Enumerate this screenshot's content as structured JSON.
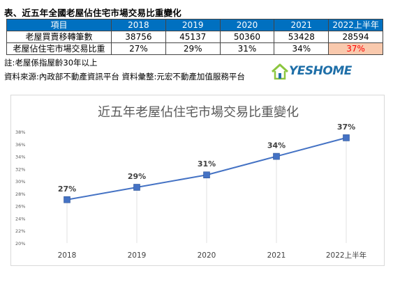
{
  "title": "表、近五年全國老屋佔住宅市場交易比重變化",
  "table": {
    "headers": [
      "項目",
      "2018",
      "2019",
      "2020",
      "2021",
      "2022上半年"
    ],
    "rows": [
      {
        "label": "老屋買賣移轉筆數",
        "values": [
          "38756",
          "45137",
          "50360",
          "53428",
          "28594"
        ]
      },
      {
        "label": "老屋佔住宅市場交易比重",
        "values": [
          "27%",
          "29%",
          "31%",
          "34%",
          "37%"
        ]
      }
    ],
    "highlight_color": "#f9c9ad",
    "header_color": "#0070c0"
  },
  "note": "註:老屋係指屋齡30年以上",
  "source": "資料來源:內政部不動產資訊平台  資料彙整:元宏不動產加值服務平台",
  "logo": {
    "text": "YESHOME",
    "icon": "house-icon"
  },
  "chart_data": {
    "type": "line",
    "title": "近五年老屋佔住宅市場交易比重變化",
    "categories": [
      "2018",
      "2019",
      "2020",
      "2021",
      "2022上半年"
    ],
    "values": [
      27,
      29,
      31,
      34,
      37
    ],
    "data_labels": [
      "27%",
      "29%",
      "31%",
      "34%",
      "37%"
    ],
    "y_ticks": [
      "20%",
      "22%",
      "24%",
      "26%",
      "28%",
      "30%",
      "32%",
      "34%",
      "36%",
      "38%"
    ],
    "ylim": [
      20,
      38
    ],
    "grid": "vertical drop lines",
    "line_color": "#4472c4",
    "marker": "square"
  }
}
